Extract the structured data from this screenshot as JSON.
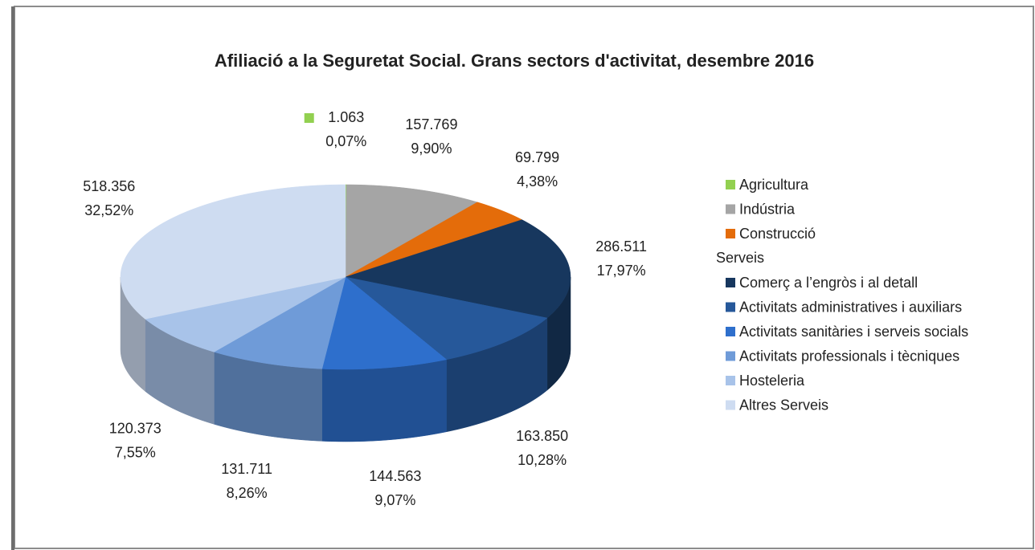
{
  "chart_data": {
    "type": "pie3d",
    "title": "Afiliació a la Seguretat Social. Grans sectors d'activitat, desembre 2016",
    "categories": [
      "Agricultura",
      "Indústria",
      "Construcció",
      "Comerç a l’engròs i al detall",
      "Activitats administratives i auxiliars",
      "Activitats sanitàries i serveis socials",
      "Activitats professionals i tècniques",
      "Hosteleria",
      "Altres Serveis"
    ],
    "values": [
      1063,
      157769,
      69799,
      286511,
      163850,
      144563,
      131711,
      120373,
      518356
    ],
    "value_labels": [
      "1.063",
      "157.769",
      "69.799",
      "286.511",
      "163.850",
      "144.563",
      "131.711",
      "120.373",
      "518.356"
    ],
    "percentages": [
      0.07,
      9.9,
      4.38,
      17.97,
      10.28,
      9.07,
      8.26,
      7.55,
      32.52
    ],
    "percentage_labels": [
      "0,07%",
      "9,90%",
      "4,38%",
      "17,97%",
      "10,28%",
      "9,07%",
      "8,26%",
      "7,55%",
      "32,52%"
    ],
    "colors": [
      "#92d050",
      "#a5a5a5",
      "#e46c0a",
      "#17375e",
      "#26589a",
      "#2e6fcc",
      "#6f9bd8",
      "#a8c3e9",
      "#cedcf1"
    ],
    "legend_heading": "Serveis",
    "legend": "right"
  }
}
